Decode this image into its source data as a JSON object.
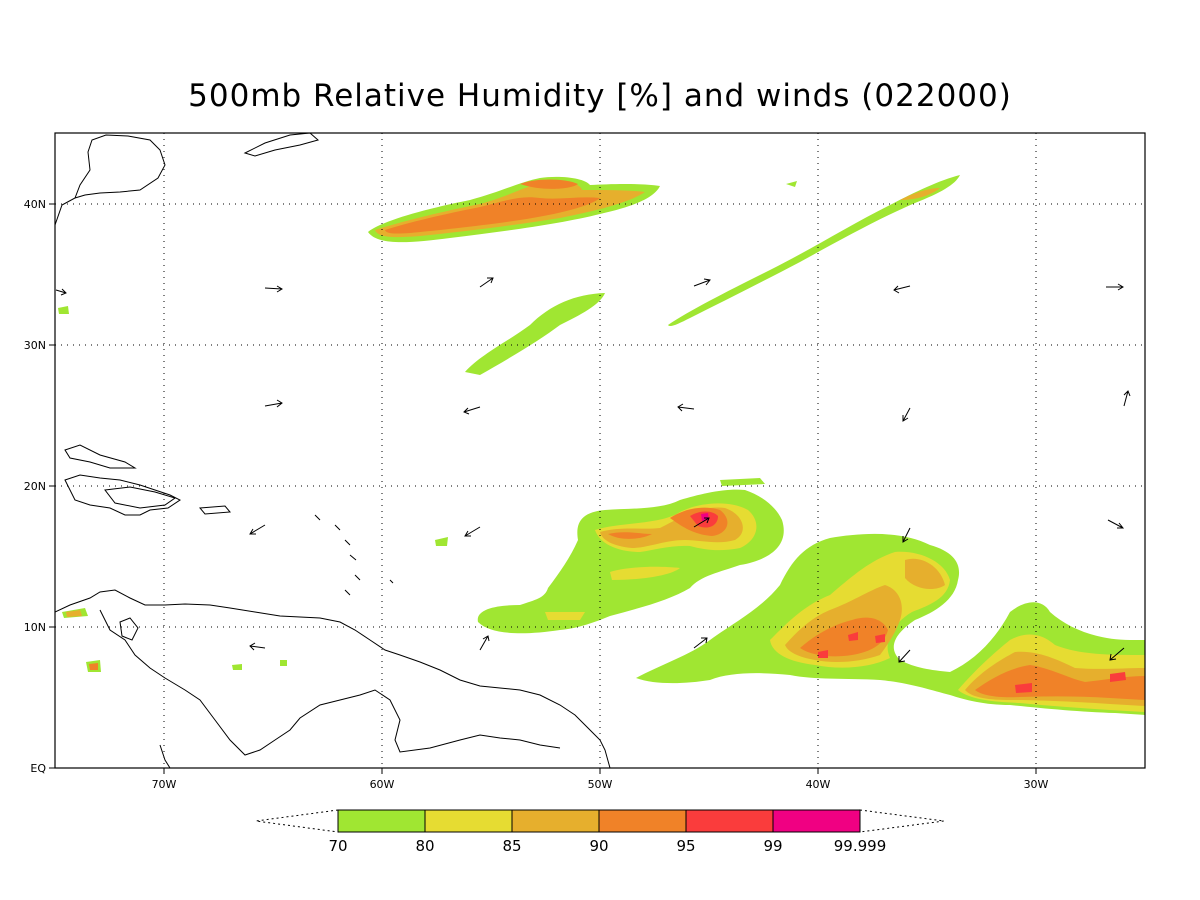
{
  "title": "500mb Relative Humidity [%] and winds (022000)",
  "map": {
    "lon_labels": [
      "70W",
      "60W",
      "50W",
      "40W",
      "30W"
    ],
    "lat_labels": [
      "40N",
      "30N",
      "20N",
      "10N",
      "EQ"
    ]
  },
  "colorbar": {
    "levels": [
      "70",
      "80",
      "85",
      "90",
      "95",
      "99",
      "99.999"
    ],
    "colors": [
      "#a0e632",
      "#e6dc32",
      "#e6af2d",
      "#f08228",
      "#fa3c3c",
      "#f00082"
    ]
  }
}
